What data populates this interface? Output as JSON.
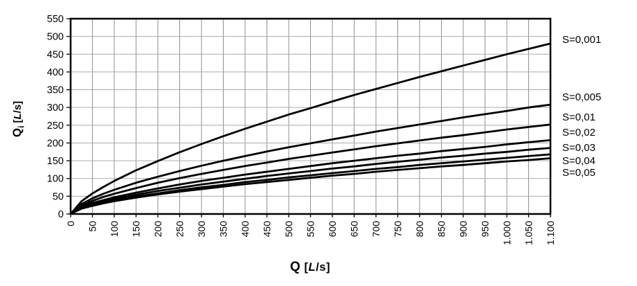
{
  "colors": {
    "curve": "#000000",
    "frame": "#000000",
    "grid_vertical": "#8f8f8f",
    "grid_horizontal": "#aaaaaa",
    "text": "#000000",
    "background": "#ffffff"
  },
  "axes": {
    "x": {
      "sym": "Q",
      "sub": "",
      "open": " [",
      "italic": "L",
      "close": "/s]"
    },
    "y": {
      "sym": "Q",
      "sub": "i",
      "open": " [",
      "italic": "L",
      "close": "/s]"
    }
  },
  "chart_data": {
    "type": "line",
    "title": "",
    "xlabel": "Q [L/s]",
    "ylabel": "Qi [L/s]",
    "xlim": [
      0,
      1100
    ],
    "ylim": [
      0,
      550
    ],
    "x_tick_interval": 50,
    "y_tick_interval": 50,
    "grid": true,
    "legend_position": "right-outside",
    "x_tick_labels": [
      "0",
      "50",
      "100",
      "150",
      "200",
      "250",
      "300",
      "350",
      "400",
      "450",
      "500",
      "550",
      "600",
      "650",
      "700",
      "750",
      "800",
      "850",
      "900",
      "950",
      "1.000",
      "1.050",
      "1.100"
    ],
    "y_tick_labels": [
      "0",
      "50",
      "100",
      "150",
      "200",
      "250",
      "300",
      "350",
      "400",
      "450",
      "500",
      "550"
    ],
    "x": [
      0,
      25,
      50,
      75,
      100,
      150,
      200,
      250,
      300,
      350,
      400,
      450,
      500,
      550,
      600,
      650,
      700,
      750,
      800,
      850,
      900,
      950,
      1000,
      1050,
      1100
    ],
    "series": [
      {
        "name": "S=0,001",
        "values": [
          0,
          36,
          58,
          76,
          93,
          123,
          149,
          174,
          197,
          219,
          240,
          260,
          280,
          298,
          317,
          335,
          352,
          369,
          386,
          402,
          418,
          434,
          450,
          465,
          480
        ]
      },
      {
        "name": "S=0,005",
        "values": [
          0,
          28,
          44,
          57,
          68,
          88,
          105,
          121,
          136,
          150,
          163,
          176,
          188,
          199,
          210,
          221,
          232,
          242,
          252,
          262,
          272,
          281,
          290,
          300,
          308
        ]
      },
      {
        "name": "S=0,01",
        "values": [
          0,
          24,
          37,
          48,
          57,
          73,
          88,
          101,
          113,
          124,
          135,
          145,
          155,
          164,
          173,
          182,
          191,
          199,
          207,
          215,
          222,
          230,
          238,
          245,
          252
        ]
      },
      {
        "name": "S=0,02",
        "values": [
          0,
          20,
          31,
          39,
          47,
          60,
          72,
          83,
          93,
          102,
          111,
          119,
          127,
          135,
          143,
          150,
          157,
          164,
          170,
          177,
          183,
          189,
          196,
          202,
          208
        ]
      },
      {
        "name": "S=0,03",
        "values": [
          0,
          18,
          27,
          35,
          42,
          54,
          65,
          74,
          83,
          91,
          99,
          107,
          114,
          121,
          128,
          134,
          141,
          147,
          153,
          159,
          164,
          170,
          175,
          181,
          186
        ]
      },
      {
        "name": "S=0,04",
        "values": [
          0,
          16,
          25,
          32,
          38,
          49,
          58,
          67,
          75,
          82,
          90,
          96,
          103,
          109,
          115,
          121,
          127,
          132,
          138,
          143,
          148,
          153,
          158,
          163,
          168
        ]
      },
      {
        "name": "S=0,05",
        "values": [
          0,
          15,
          23,
          30,
          36,
          46,
          55,
          63,
          70,
          77,
          84,
          90,
          96,
          102,
          108,
          113,
          119,
          124,
          129,
          134,
          138,
          143,
          148,
          152,
          157
        ]
      }
    ]
  }
}
